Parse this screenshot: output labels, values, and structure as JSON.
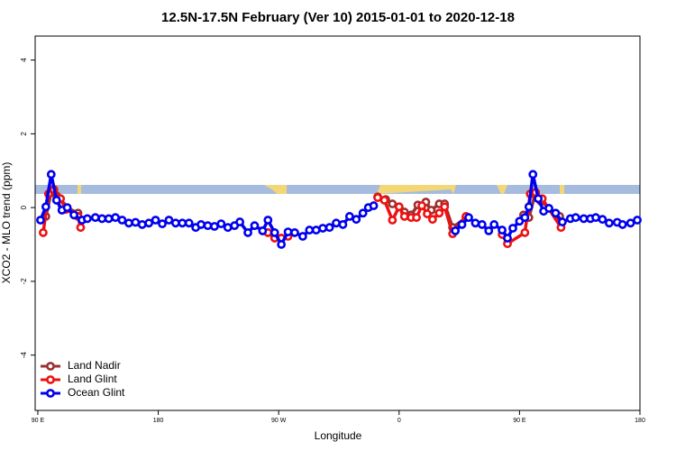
{
  "chart_data": {
    "type": "line",
    "title": "12.5N-17.5N February (Ver 10)   2015-01-01 to 2020-12-18",
    "x_label": "Longitude",
    "y_label": "XCO2 - MLO trend (ppm)",
    "xlim": [
      88,
      540
    ],
    "ylim": [
      -5.5,
      4.65
    ],
    "xticks": [
      {
        "value": 90,
        "label": "90 E"
      },
      180,
      {
        "value": 270,
        "label": "90 W"
      },
      {
        "value": 360,
        "label": "0"
      },
      {
        "value": 450,
        "label": "90 E"
      },
      {
        "value": 540,
        "label": "180"
      }
    ],
    "yticks": [
      -4,
      -2,
      0,
      2,
      4
    ],
    "legend": "bottom-left",
    "series": [
      {
        "name": "Land Nadir",
        "color": "#9b3030",
        "x": [
          96,
          100,
          104,
          108,
          120,
          200,
          267,
          272,
          300,
          344,
          350,
          355,
          360,
          364,
          369,
          374,
          380,
          384,
          390,
          394,
          400,
          410,
          430,
          453,
          457,
          462,
          466,
          480
        ],
        "values": [
          -0.24,
          0.41,
          0.32,
          0.07,
          -0.15,
          null,
          -0.78,
          -0.83,
          null,
          0.29,
          0.22,
          0.1,
          0.02,
          -0.12,
          -0.2,
          0.07,
          0.15,
          -0.07,
          0.1,
          0.1,
          -0.54,
          -0.27,
          null,
          -0.2,
          -0.27,
          0.41,
          0.17,
          -0.24
        ]
      },
      {
        "name": "Land Glint",
        "color": "#ee1111",
        "x": [
          94,
          98,
          102,
          107,
          111,
          120,
          122,
          200,
          258,
          262,
          267,
          272,
          277,
          300,
          344,
          349,
          355,
          360,
          364,
          369,
          373,
          377,
          381,
          385,
          390,
          394,
          400,
          410,
          430,
          437,
          441,
          454,
          458,
          462,
          467,
          481
        ],
        "values": [
          -0.68,
          0.37,
          0.49,
          0.24,
          -0.05,
          -0.24,
          -0.54,
          null,
          -0.63,
          -0.68,
          -0.83,
          -0.83,
          -0.78,
          null,
          0.27,
          0.2,
          -0.34,
          0.02,
          -0.24,
          -0.27,
          -0.27,
          0.05,
          -0.17,
          -0.32,
          -0.15,
          0.02,
          -0.71,
          -0.24,
          null,
          -0.73,
          -0.98,
          -0.68,
          0.37,
          0.41,
          0.24,
          -0.54
        ]
      },
      {
        "name": "Ocean Glint",
        "color": "#0000ee",
        "x": [
          92,
          96,
          100,
          104,
          108,
          112,
          117,
          123,
          127,
          133,
          138,
          143,
          148,
          153,
          158,
          163,
          168,
          173,
          178,
          183,
          188,
          193,
          198,
          203,
          208,
          212,
          217,
          222,
          227,
          232,
          237,
          241,
          247,
          252,
          258,
          262,
          267,
          272,
          277,
          282,
          288,
          293,
          298,
          303,
          308,
          313,
          318,
          323,
          328,
          333,
          337,
          341,
          370,
          402,
          407,
          412,
          417,
          422,
          427,
          431,
          437,
          441,
          445,
          450,
          454,
          457,
          460,
          464,
          468,
          472,
          477,
          482,
          488,
          492,
          498,
          503,
          507,
          512,
          517,
          523,
          527,
          533,
          538
        ],
        "values": [
          -0.34,
          0.02,
          0.9,
          0.2,
          -0.07,
          0,
          -0.2,
          -0.34,
          -0.3,
          -0.27,
          -0.3,
          -0.3,
          -0.27,
          -0.34,
          -0.42,
          -0.4,
          -0.46,
          -0.42,
          -0.34,
          -0.44,
          -0.34,
          -0.42,
          -0.42,
          -0.42,
          -0.54,
          -0.46,
          -0.49,
          -0.51,
          -0.44,
          -0.54,
          -0.49,
          -0.39,
          -0.68,
          -0.49,
          -0.63,
          -0.34,
          -0.68,
          -1.0,
          -0.66,
          -0.68,
          -0.78,
          -0.61,
          -0.61,
          -0.56,
          -0.54,
          -0.42,
          -0.46,
          -0.24,
          -0.32,
          -0.15,
          0,
          0.05,
          null,
          -0.63,
          -0.46,
          -0.27,
          -0.42,
          -0.46,
          -0.63,
          -0.46,
          -0.61,
          -0.83,
          -0.56,
          -0.37,
          -0.27,
          0.02,
          0.9,
          0.24,
          -0.1,
          -0.02,
          -0.15,
          -0.39,
          -0.3,
          -0.27,
          -0.3,
          -0.3,
          -0.27,
          -0.32,
          -0.42,
          -0.4,
          -0.46,
          -0.42,
          -0.34
        ]
      }
    ]
  }
}
